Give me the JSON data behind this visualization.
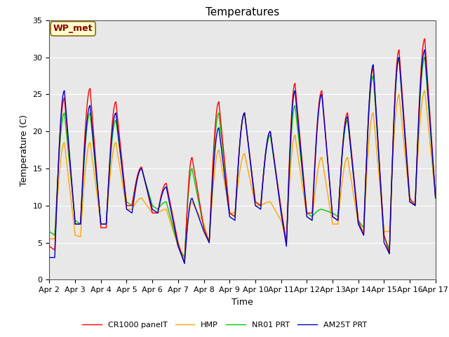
{
  "title": "Temperatures",
  "xlabel": "Time",
  "ylabel": "Temperature (C)",
  "ylim": [
    0,
    35
  ],
  "xlim": [
    0,
    360
  ],
  "fig_bg_color": "#ffffff",
  "plot_bg_color": "#e8e8e8",
  "annotation_text": "WP_met",
  "annotation_bg": "#ffffcc",
  "annotation_border": "#8b6914",
  "annotation_text_color": "#8b0000",
  "x_tick_labels": [
    "Apr 2",
    "Apr 3",
    "Apr 4",
    "Apr 5",
    "Apr 6",
    "Apr 7",
    "Apr 8",
    "Apr 9",
    "Apr 10",
    "Apr 11",
    "Apr 12",
    "Apr 13",
    "Apr 14",
    "Apr 15",
    "Apr 16",
    "Apr 17"
  ],
  "x_tick_positions": [
    0,
    24,
    48,
    72,
    96,
    120,
    144,
    168,
    192,
    216,
    240,
    264,
    288,
    312,
    336,
    360
  ],
  "series_colors": {
    "CR1000 panelT": "#ff0000",
    "HMP": "#ffa500",
    "NR01 PRT": "#00cc00",
    "AM25T PRT": "#0000cc"
  },
  "grid_color": "#ffffff",
  "linewidth": 1.0,
  "title_fontsize": 11,
  "tick_fontsize": 8,
  "label_fontsize": 9,
  "legend_fontsize": 8
}
